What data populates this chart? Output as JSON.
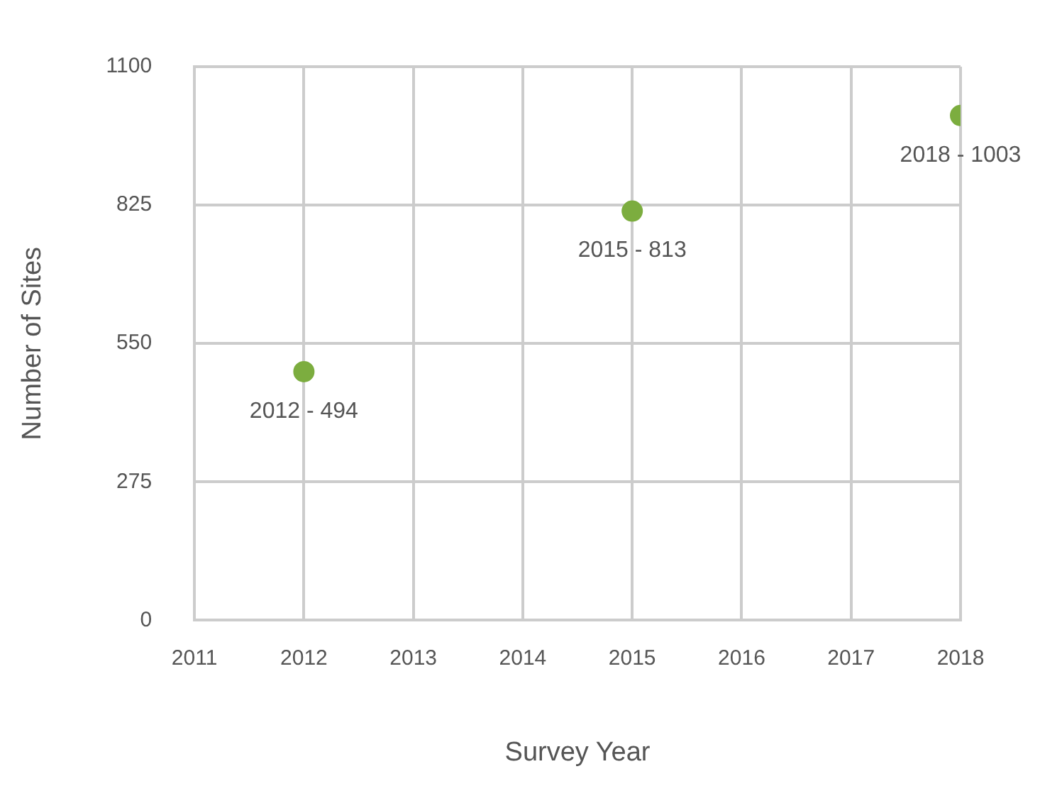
{
  "chart_data": {
    "type": "scatter",
    "xlabel": "Survey Year",
    "ylabel": "Number of Sites",
    "x": [
      2012,
      2015,
      2018
    ],
    "series": [
      {
        "color": "#7cad3f",
        "values": [
          494,
          813,
          1003
        ]
      }
    ],
    "xlim": [
      2011,
      2018
    ],
    "xticks": [
      2011,
      2012,
      2013,
      2014,
      2015,
      2016,
      2017,
      2018
    ],
    "ylim": [
      0,
      1100
    ],
    "yticks": [
      0,
      275,
      550,
      825,
      1100
    ],
    "grid": true,
    "legend": false,
    "marker": "circle",
    "annotations": [
      {
        "text": "2012 - 494",
        "x": 2012,
        "y": 494
      },
      {
        "text": "2015 - 813",
        "x": 2015,
        "y": 813
      },
      {
        "text": "2018 - 1003",
        "x": 2018,
        "y": 1003
      }
    ]
  }
}
